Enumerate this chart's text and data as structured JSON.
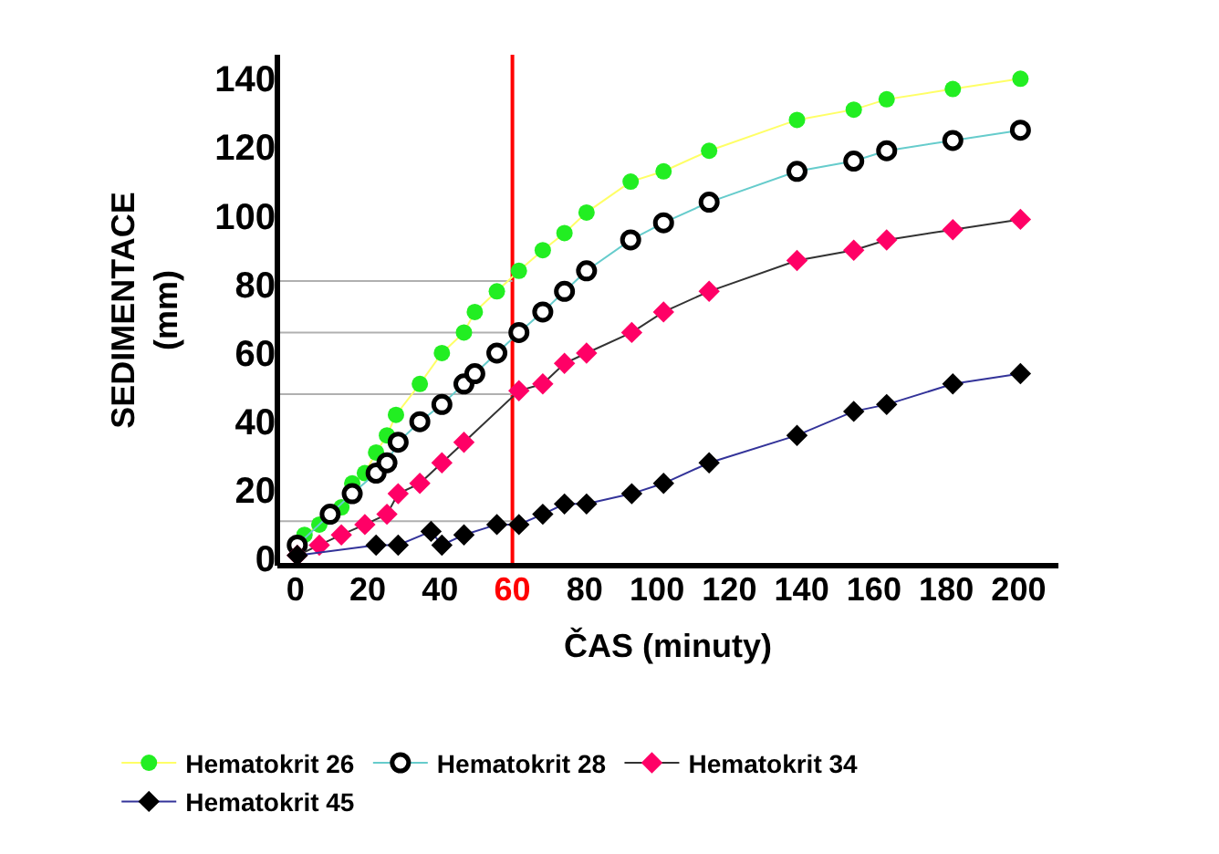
{
  "chart_data": {
    "type": "line",
    "xlabel": "ČAS (minuty)",
    "ylabel": "SEDIMENTACE\n(mm)",
    "xlim": [
      -5,
      211
    ],
    "xticks": [
      0,
      20,
      40,
      60,
      80,
      100,
      120,
      140,
      160,
      180,
      200
    ],
    "ylim": [
      -2,
      147
    ],
    "yticks": [
      0,
      20,
      40,
      60,
      80,
      100,
      120,
      140
    ],
    "grid": false,
    "legend": "bottom",
    "ref_lines": [
      {
        "axis": "x",
        "value": 60,
        "color": "#ff0000"
      },
      {
        "axis": "y",
        "value": 81,
        "color": "#b0b0b0"
      },
      {
        "axis": "y",
        "value": 66,
        "color": "#b0b0b0"
      },
      {
        "axis": "y",
        "value": 48,
        "color": "#b0b0b0"
      },
      {
        "axis": "y",
        "value": 11,
        "color": "#b0b0b0"
      }
    ],
    "series": [
      {
        "name": "Hematokrit 26",
        "color": "#ffff66",
        "marker": "circle",
        "colors": [
          "#22ee22",
          "#22ee22",
          "#22ee22",
          "#22ee22",
          "#22ee22",
          "#22ee22",
          "#22ee22",
          "#22ee22",
          "#22ee22",
          "#22ee22",
          "#22ee22",
          "#22ee22",
          "#22ee22",
          "#22ee22",
          "#22ee22",
          "#22ee22",
          "#22ee22",
          "#22ee22",
          "#22ee22",
          "#22ee22",
          "#22ee22",
          "#22ee22",
          "#22ee22",
          "#22ee22",
          "#22ee22"
        ],
        "x": [
          2.5,
          6.6,
          12.7,
          15.7,
          19.2,
          22.3,
          25.3,
          27.8,
          34.4,
          40.5,
          46.6,
          49.6,
          55.7,
          61.8,
          68.4,
          74.4,
          80.5,
          92.7,
          101.8,
          114.4,
          138.7,
          154.4,
          163.5,
          181.8,
          200.5
        ],
        "values": [
          7,
          10,
          15,
          22,
          25,
          31,
          36,
          42,
          51,
          60,
          66,
          72,
          78,
          84,
          90,
          95,
          101,
          110,
          113,
          119,
          128,
          131,
          134,
          137,
          140
        ]
      },
      {
        "name": "Hematokrit 28",
        "color": "#66cccc",
        "marker": "circle",
        "colors": [
          "#ffffff",
          "#ffffff",
          "#ffffff",
          "#ffffff",
          "#ffffff",
          "#ffffff",
          "#ffffff",
          "#ffffff",
          "#ffffff",
          "#ffffff",
          "#ffffff",
          "#ffffff",
          "#ffffff",
          "#ffffff",
          "#ffffff",
          "#ffffff",
          "#ffffff",
          "#ffffff",
          "#ffffff",
          "#ffffff",
          "#ffffff",
          "#ffffff",
          "#ffffff"
        ],
        "x": [
          0.5,
          9.6,
          15.7,
          22.3,
          25.3,
          28.4,
          34.4,
          40.5,
          46.6,
          49.6,
          55.7,
          61.8,
          68.4,
          74.4,
          80.5,
          92.7,
          101.8,
          114.4,
          138.7,
          154.4,
          163.5,
          181.8,
          200.5
        ],
        "values": [
          4,
          13,
          19,
          25,
          28,
          34,
          40,
          45,
          51,
          54,
          60,
          66,
          72,
          78,
          84,
          93,
          98,
          104,
          113,
          116,
          119,
          122,
          125
        ]
      },
      {
        "name": "Hematokrit 34",
        "color": "#333333",
        "marker": "diamond",
        "colors": [
          "#ff0066",
          "#ff0066",
          "#ff0066",
          "#ff0066",
          "#ff0066",
          "#ff0066",
          "#ff0066",
          "#ff0066",
          "#ff0066",
          "#ff0066",
          "#ff0066",
          "#ff0066",
          "#ff0066",
          "#ff0066",
          "#ff0066",
          "#ff0066",
          "#ff0066",
          "#ff0066",
          "#ff0066",
          "#ff0066",
          "#ff0066"
        ],
        "x": [
          0.5,
          6.6,
          12.7,
          19.2,
          25.3,
          28.4,
          34.4,
          40.5,
          46.6,
          61.8,
          68.4,
          74.4,
          80.5,
          93,
          101.8,
          114.4,
          138.7,
          154.4,
          163.5,
          181.8,
          200.5
        ],
        "values": [
          1,
          4,
          7,
          10,
          13,
          19,
          22,
          28,
          34,
          49,
          51,
          57,
          60,
          66,
          72,
          78,
          87,
          90,
          93,
          96,
          99
        ]
      },
      {
        "name": "Hematokrit 45",
        "color": "#333399",
        "marker": "diamond",
        "colors": [
          "#000000",
          "#000000",
          "#000000",
          "#000000",
          "#000000",
          "#000000",
          "#000000",
          "#000000",
          "#000000",
          "#000000",
          "#000000",
          "#000000",
          "#000000",
          "#000000",
          "#000000",
          "#000000",
          "#000000",
          "#000000",
          "#000000"
        ],
        "x": [
          0.5,
          22.3,
          28.4,
          37.5,
          40.5,
          46.6,
          55.7,
          61.8,
          68.4,
          74.4,
          80.5,
          93,
          101.8,
          114.4,
          138.7,
          154.4,
          163.5,
          181.8,
          200.5
        ],
        "values": [
          1,
          4,
          4,
          8,
          4,
          7,
          10,
          10,
          13,
          16,
          16,
          19,
          22,
          28,
          36,
          43,
          45,
          51,
          54
        ]
      }
    ]
  }
}
